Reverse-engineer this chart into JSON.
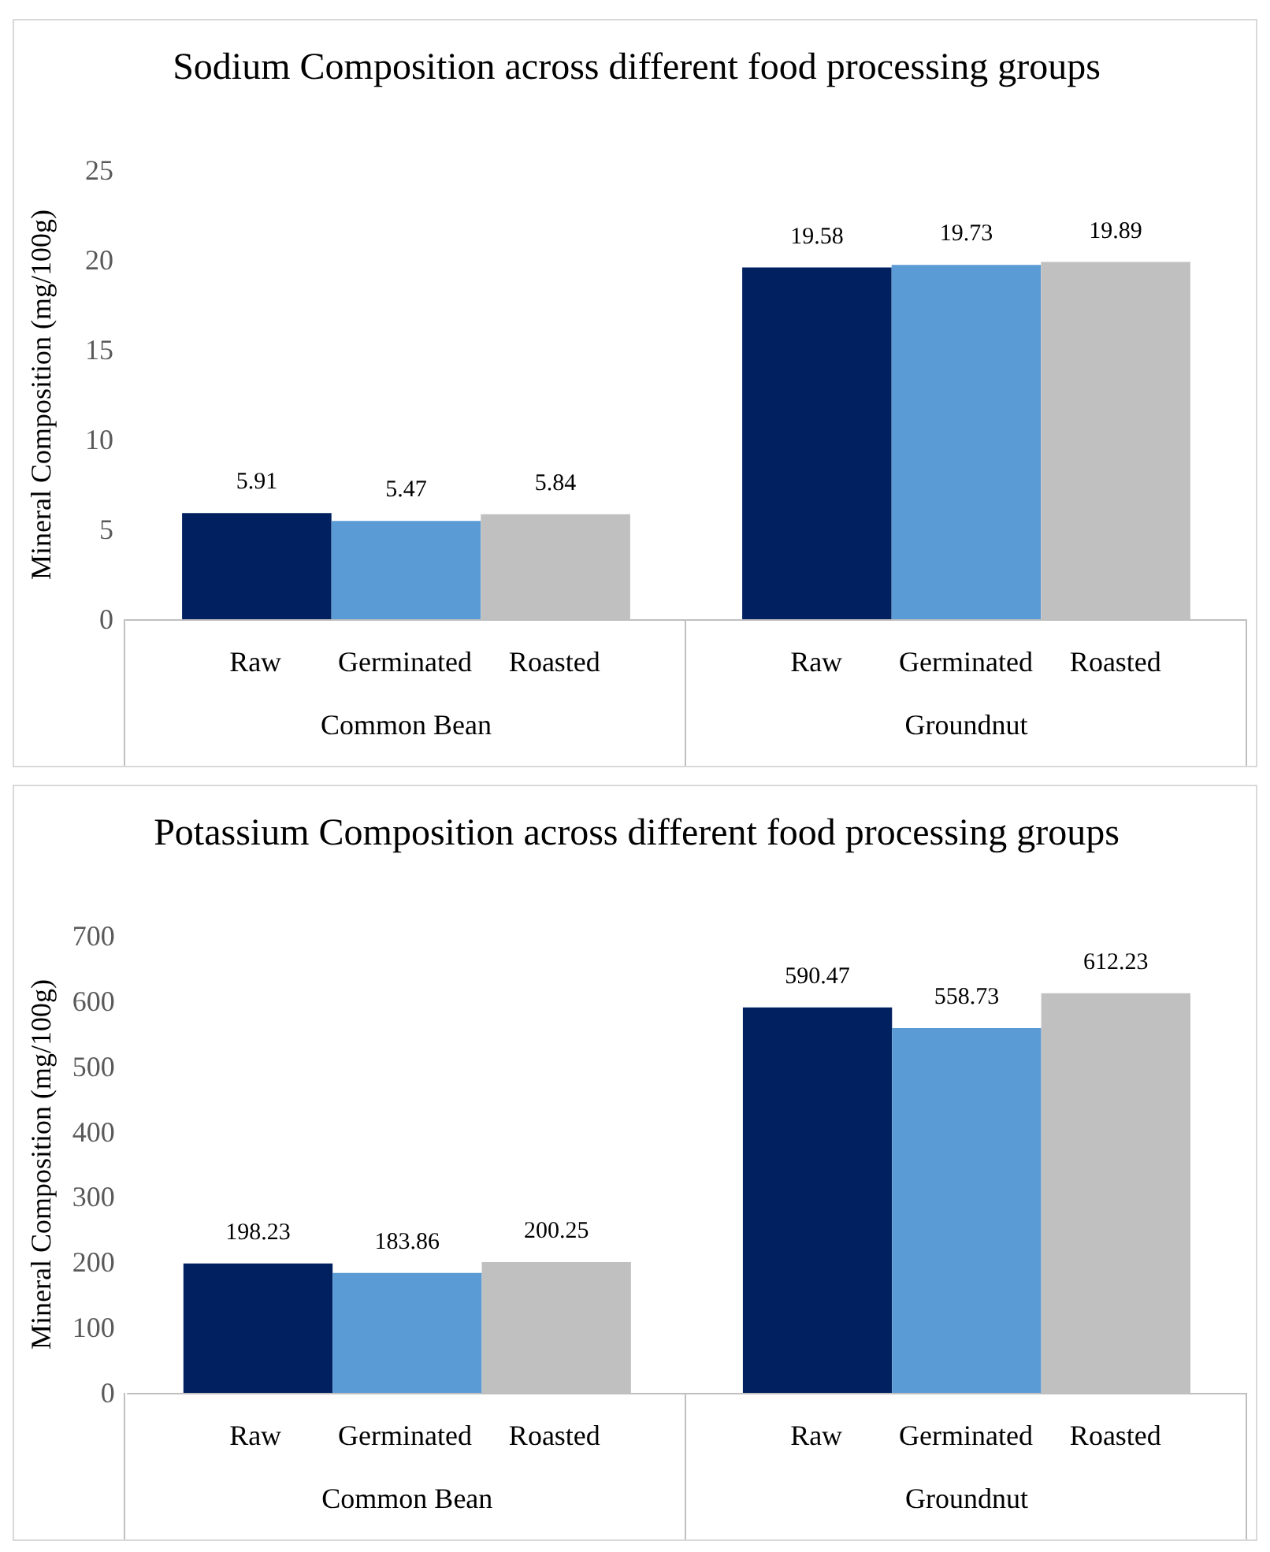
{
  "chart_data": [
    {
      "type": "bar",
      "title": "Sodium Composition across different food processing groups",
      "ylabel": "Mineral Composition (mg/100g)",
      "categories": [
        "Common Bean",
        "Groundnut"
      ],
      "series": [
        {
          "name": "Raw",
          "color": "#002060",
          "values": [
            5.91,
            19.58
          ]
        },
        {
          "name": "Germinated",
          "color": "#5b9bd5",
          "values": [
            5.47,
            19.73
          ]
        },
        {
          "name": "Roasted",
          "color": "#c0c0c0",
          "values": [
            5.84,
            19.89
          ]
        }
      ],
      "ylim": [
        0,
        25
      ],
      "yticks": [
        0,
        5,
        10,
        15,
        20,
        25
      ],
      "data_labels": true
    },
    {
      "type": "bar",
      "title": "Potassium Composition across different food processing groups",
      "ylabel": "Mineral Composition (mg/100g)",
      "categories": [
        "Common Bean",
        "Groundnut"
      ],
      "series": [
        {
          "name": "Raw",
          "color": "#002060",
          "values": [
            198.23,
            590.47
          ]
        },
        {
          "name": "Germinated",
          "color": "#5b9bd5",
          "values": [
            183.86,
            558.73
          ]
        },
        {
          "name": "Roasted",
          "color": "#c0c0c0",
          "values": [
            200.25,
            612.23
          ]
        }
      ],
      "ylim": [
        0,
        700
      ],
      "yticks": [
        0,
        100,
        200,
        300,
        400,
        500,
        600,
        700
      ],
      "data_labels": true
    }
  ]
}
